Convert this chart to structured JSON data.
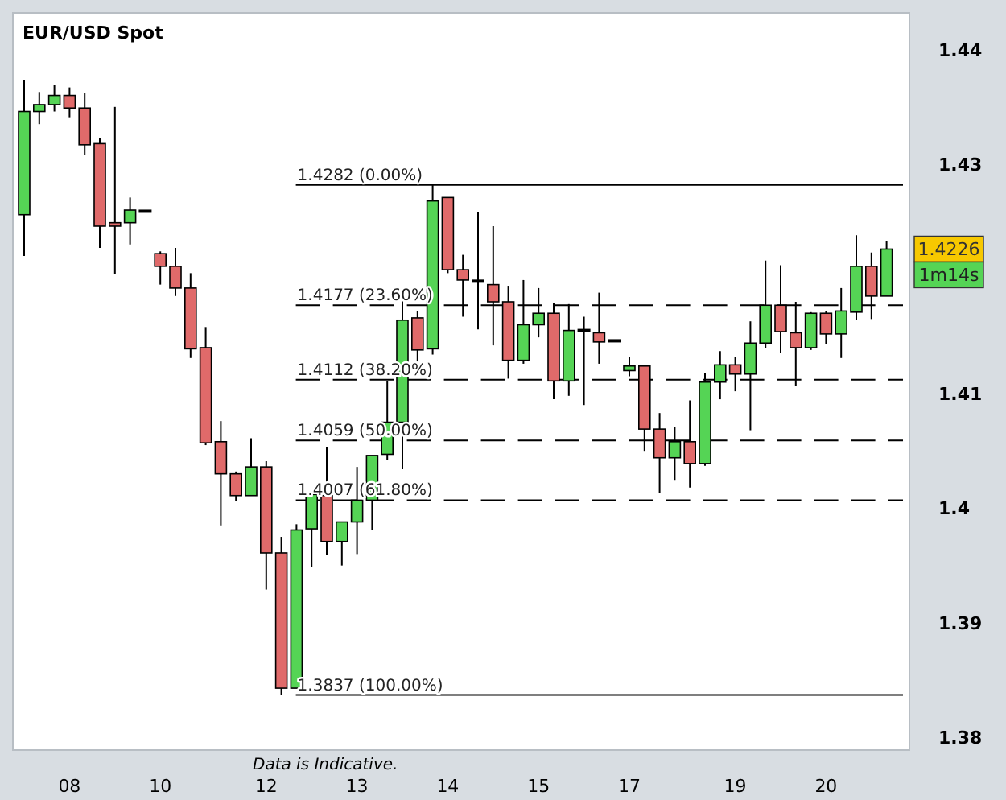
{
  "chart_data": {
    "type": "candlestick",
    "title": "EUR/USD Spot",
    "categories": [
      null,
      null,
      null,
      "08",
      null,
      null,
      null,
      null,
      null,
      "10",
      null,
      null,
      null,
      null,
      null,
      null,
      "12",
      null,
      null,
      null,
      null,
      null,
      "13",
      null,
      null,
      null,
      null,
      null,
      "14",
      null,
      null,
      null,
      null,
      null,
      "15",
      null,
      null,
      null,
      null,
      null,
      "17",
      null,
      null,
      null,
      null,
      null,
      null,
      "19",
      null,
      null,
      null,
      null,
      null,
      "20",
      null,
      null,
      null,
      null
    ],
    "ohlc": [
      [
        1.4256,
        1.4373,
        1.422,
        1.4346
      ],
      [
        1.4346,
        1.4363,
        1.4335,
        1.4352
      ],
      [
        1.4352,
        1.4369,
        1.4346,
        1.436
      ],
      [
        1.436,
        1.4367,
        1.4341,
        1.4349
      ],
      [
        1.4349,
        1.4362,
        1.4308,
        1.4317
      ],
      [
        1.4318,
        1.4323,
        1.4227,
        1.4246
      ],
      [
        1.4249,
        1.435,
        1.4204,
        1.4246
      ],
      [
        1.4249,
        1.4271,
        1.423,
        1.426
      ],
      [
        1.4259,
        1.4259,
        1.4259,
        1.4259
      ],
      [
        1.4222,
        1.4224,
        1.4195,
        1.4211
      ],
      [
        1.4211,
        1.4227,
        1.4185,
        1.4192
      ],
      [
        1.4192,
        1.4205,
        1.4131,
        1.4139
      ],
      [
        1.414,
        1.4158,
        1.4055,
        1.4057
      ],
      [
        1.4058,
        1.4076,
        1.3985,
        1.403
      ],
      [
        1.403,
        1.4032,
        1.4006,
        1.4011
      ],
      [
        1.4011,
        1.4061,
        1.4011,
        1.4036
      ],
      [
        1.4036,
        1.4041,
        1.3929,
        1.3961
      ],
      [
        1.3961,
        1.3975,
        1.3837,
        1.3843
      ],
      [
        1.3843,
        1.3986,
        1.3843,
        1.3981
      ],
      [
        1.3982,
        1.4014,
        1.3949,
        1.4012
      ],
      [
        1.4011,
        1.4053,
        1.3959,
        1.3971
      ],
      [
        1.3971,
        1.3988,
        1.395,
        1.3988
      ],
      [
        1.3988,
        1.4036,
        1.396,
        1.4007
      ],
      [
        1.4007,
        1.4046,
        1.3981,
        1.4046
      ],
      [
        1.4047,
        1.4111,
        1.4042,
        1.4075
      ],
      [
        1.4075,
        1.4192,
        1.4034,
        1.4164
      ],
      [
        1.4166,
        1.4172,
        1.4128,
        1.4138
      ],
      [
        1.4139,
        1.4282,
        1.4134,
        1.4268
      ],
      [
        1.4271,
        1.4271,
        1.4205,
        1.4208
      ],
      [
        1.4208,
        1.4221,
        1.4167,
        1.4199
      ],
      [
        1.4198,
        1.4258,
        1.4156,
        1.4198
      ],
      [
        1.4195,
        1.4246,
        1.4142,
        1.418
      ],
      [
        1.418,
        1.4194,
        1.4113,
        1.4129
      ],
      [
        1.4129,
        1.4199,
        1.4126,
        1.416
      ],
      [
        1.416,
        1.4192,
        1.4149,
        1.417
      ],
      [
        1.417,
        1.4179,
        1.4095,
        1.4111
      ],
      [
        1.4111,
        1.4178,
        1.4098,
        1.4155
      ],
      [
        1.4155,
        1.4167,
        1.409,
        1.4155
      ],
      [
        1.4153,
        1.4188,
        1.4126,
        1.4145
      ],
      [
        1.4146,
        1.4146,
        1.4146,
        1.4146
      ],
      [
        1.412,
        1.4132,
        1.4115,
        1.4124
      ],
      [
        1.4124,
        1.4125,
        1.405,
        1.4069
      ],
      [
        1.4069,
        1.4083,
        1.4013,
        1.4044
      ],
      [
        1.4044,
        1.4071,
        1.4024,
        1.4058
      ],
      [
        1.4058,
        1.4094,
        1.4018,
        1.4039
      ],
      [
        1.4039,
        1.4118,
        1.4037,
        1.411
      ],
      [
        1.411,
        1.4137,
        1.4095,
        1.4125
      ],
      [
        1.4125,
        1.4132,
        1.4102,
        1.4117
      ],
      [
        1.4117,
        1.4163,
        1.4068,
        1.4144
      ],
      [
        1.4144,
        1.4216,
        1.414,
        1.4177
      ],
      [
        1.4177,
        1.4212,
        1.4135,
        1.4154
      ],
      [
        1.4153,
        1.418,
        1.4107,
        1.414
      ],
      [
        1.414,
        1.4171,
        1.4138,
        1.417
      ],
      [
        1.417,
        1.4172,
        1.4143,
        1.4152
      ],
      [
        1.4152,
        1.4192,
        1.4131,
        1.4172
      ],
      [
        1.4171,
        1.4238,
        1.4164,
        1.4211
      ],
      [
        1.4211,
        1.4223,
        1.4165,
        1.4185
      ],
      [
        1.4185,
        1.4233,
        1.4185,
        1.4226
      ]
    ],
    "colors": [
      "#55d455",
      "#55d455",
      "#55d455",
      "#e06a6a",
      "#e06a6a",
      "#e06a6a",
      "#e06a6a",
      "#55d455",
      "#000000",
      "#e06a6a",
      "#e06a6a",
      "#e06a6a",
      "#e06a6a",
      "#e06a6a",
      "#e06a6a",
      "#55d455",
      "#e06a6a",
      "#e06a6a",
      "#55d455",
      "#55d455",
      "#e06a6a",
      "#55d455",
      "#55d455",
      "#55d455",
      "#55d455",
      "#55d455",
      "#e06a6a",
      "#55d455",
      "#e06a6a",
      "#e06a6a",
      "#000000",
      "#e06a6a",
      "#e06a6a",
      "#55d455",
      "#55d455",
      "#e06a6a",
      "#55d455",
      "#000000",
      "#e06a6a",
      "#000000",
      "#55d455",
      "#e06a6a",
      "#e06a6a",
      "#55d455",
      "#e06a6a",
      "#55d455",
      "#55d455",
      "#e06a6a",
      "#55d455",
      "#55d455",
      "#e06a6a",
      "#e06a6a",
      "#55d455",
      "#e06a6a",
      "#55d455",
      "#55d455",
      "#e06a6a",
      "#55d455"
    ],
    "ylim": [
      1.3789,
      1.4432
    ],
    "yticks": [
      1.38,
      1.39,
      {
        "value": 1.4,
        "label": "1.4"
      },
      1.41,
      1.43,
      1.44
    ],
    "ref_lines": [
      {
        "axis": "y",
        "value": 1.4282,
        "label": "1.4282 (0.00%)",
        "line_style": "solid"
      },
      {
        "axis": "y",
        "value": 1.4177,
        "label": "1.4177 (23.60%)",
        "line_style": "dashed"
      },
      {
        "axis": "y",
        "value": 1.4112,
        "label": "1.4112 (38.20%)",
        "line_style": "dashed"
      },
      {
        "axis": "y",
        "value": 1.4059,
        "label": "1.4059 (50.00%)",
        "line_style": "dashed"
      },
      {
        "axis": "y",
        "value": 1.4007,
        "label": "1.4007 (61.80%)",
        "line_style": "dashed"
      },
      {
        "axis": "y",
        "value": 1.3837,
        "label": "1.3837 (100.00%)",
        "line_style": "solid"
      }
    ],
    "annotations": [
      {
        "text": "1.4226",
        "y": 1.4226
      },
      "1m14s",
      "Data is Indicative."
    ],
    "grid": false
  }
}
